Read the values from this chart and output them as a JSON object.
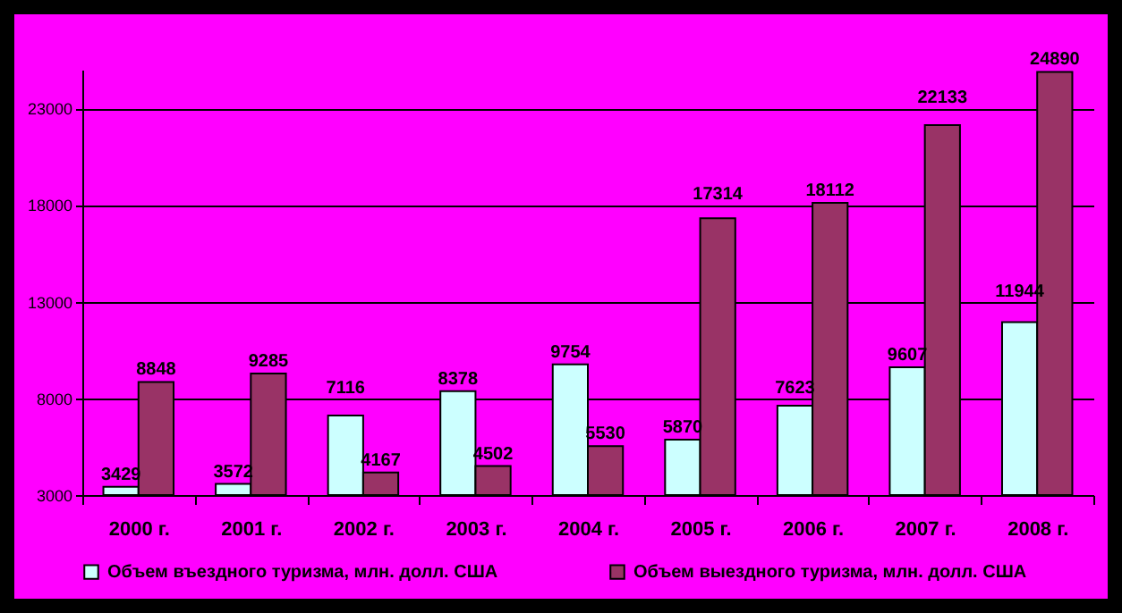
{
  "chart_data": {
    "type": "bar",
    "categories": [
      "2000 г.",
      "2001 г.",
      "2002 г.",
      "2003 г.",
      "2004 г.",
      "2005 г.",
      "2006 г.",
      "2007 г.",
      "2008 г."
    ],
    "series": [
      {
        "name": "Объем въездного туризма, млн. долл. США",
        "color": "#ccffff",
        "values": [
          3429,
          3572,
          7116,
          8378,
          9754,
          5870,
          7623,
          9607,
          11944
        ]
      },
      {
        "name": "Объем выездного туризма, млн. долл. США",
        "color": "#993366",
        "values": [
          8848,
          9285,
          4167,
          4502,
          5530,
          17314,
          18112,
          22133,
          24890
        ]
      }
    ],
    "ylim": [
      3000,
      25000
    ],
    "yticks": [
      3000,
      8000,
      13000,
      18000,
      23000
    ],
    "grid": "y",
    "legend": "bottom",
    "data_labels": true
  }
}
